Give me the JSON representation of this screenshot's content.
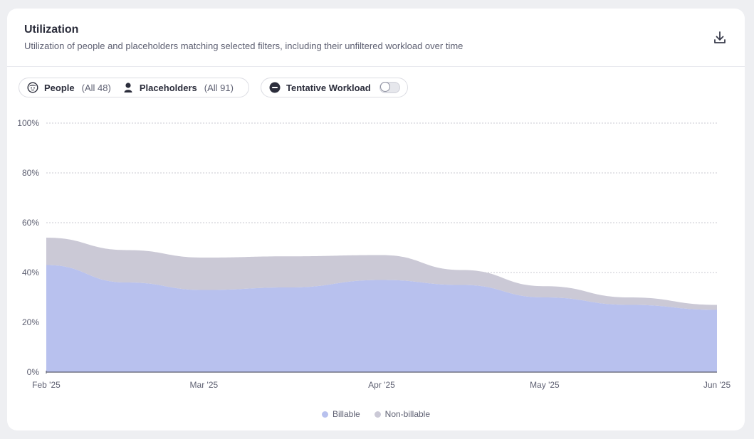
{
  "header": {
    "title": "Utilization",
    "subtitle": "Utilization of people and placeholders matching selected filters, including their unfiltered workload over time",
    "download_icon": "download-icon"
  },
  "filters": {
    "people_label": "People",
    "people_count": "(All 48)",
    "placeholders_label": "Placeholders",
    "placeholders_count": "(All 91)",
    "tentative_label": "Tentative Workload",
    "tentative_enabled": false
  },
  "colors": {
    "billable": "#b8c1ee",
    "non_billable": "#cbc9d6",
    "grid": "#c9cad2",
    "axis": "#5a5c6e"
  },
  "chart_data": {
    "type": "area",
    "stacked": true,
    "x": [
      "Feb '25",
      "Feb '25 (mid)",
      "Mar '25",
      "Mar '25 (mid)",
      "Apr '25",
      "Apr '25 (mid)",
      "May '25",
      "May '25 (mid)",
      "Jun '25"
    ],
    "xticks": [
      "Feb '25",
      "Mar '25",
      "Apr '25",
      "May '25",
      "Jun '25"
    ],
    "x_fraction": [
      0,
      0.12,
      0.235,
      0.36,
      0.5,
      0.62,
      0.743,
      0.87,
      1
    ],
    "series": [
      {
        "name": "Billable",
        "values": [
          43,
          36,
          33,
          34,
          37,
          35,
          30,
          27,
          25
        ]
      },
      {
        "name": "Non-billable",
        "values": [
          11,
          13,
          13,
          12.5,
          10,
          6,
          4.5,
          3,
          2
        ]
      }
    ],
    "ylim": [
      0,
      100
    ],
    "yticks": [
      "0%",
      "20%",
      "40%",
      "60%",
      "80%",
      "100%"
    ],
    "ytick_values": [
      0,
      20,
      40,
      60,
      80,
      100
    ],
    "grid": true,
    "legend_position": "bottom-center"
  }
}
